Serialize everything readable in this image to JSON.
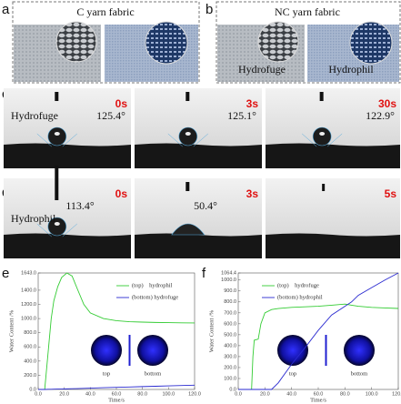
{
  "panels": {
    "a": {
      "label": "a",
      "title": "C yarn fabric"
    },
    "b": {
      "label": "b",
      "title": "NC yarn fabric",
      "captions": [
        "Hydrofuge",
        "Hydrophil"
      ]
    },
    "c": {
      "label": "c",
      "sample": "Hydrofuge",
      "times": [
        "0s",
        "3s",
        "30s"
      ],
      "angles": [
        "125.4°",
        "125.1°",
        "122.9°"
      ]
    },
    "d": {
      "label": "d",
      "sample": "Hydrophil",
      "times": [
        "0s",
        "3s",
        "5s"
      ],
      "angles": [
        "113.4°",
        "50.4°"
      ]
    }
  },
  "chart_data": [
    {
      "panel_label": "e",
      "type": "line",
      "xlabel": "Time/s",
      "ylabel": "Water Content /%",
      "inset_labels": [
        "top",
        "bottom"
      ],
      "x": [
        0,
        5,
        8,
        10,
        12,
        15,
        18,
        22,
        26,
        30,
        35,
        40,
        50,
        60,
        70,
        80,
        90,
        100,
        110,
        120
      ],
      "series": [
        {
          "name": "(top)    hydrophil",
          "color": "#33cc33",
          "values": [
            0,
            0,
            600,
            1000,
            1250,
            1450,
            1580,
            1643,
            1600,
            1420,
            1200,
            1080,
            1000,
            970,
            955,
            950,
            945,
            942,
            940,
            938
          ]
        },
        {
          "name": "(bottom) hydrofuge",
          "color": "#2a2ad0",
          "values": [
            0,
            0,
            2,
            3,
            4,
            5,
            6,
            8,
            10,
            12,
            15,
            18,
            25,
            30,
            35,
            40,
            45,
            50,
            55,
            60
          ]
        }
      ],
      "xlim": [
        0,
        120
      ],
      "ylim": [
        0,
        1643
      ],
      "xticks": [
        {
          "value": 0,
          "label": "0.0"
        },
        {
          "value": 20,
          "label": "20.0"
        },
        {
          "value": 40,
          "label": "40.0"
        },
        {
          "value": 60,
          "label": "60.0"
        },
        {
          "value": 80,
          "label": "80.0"
        },
        {
          "value": 100,
          "label": "100.0"
        },
        {
          "value": 120,
          "label": "120.0"
        }
      ],
      "yticks": [
        {
          "value": 0,
          "label": "0.0"
        },
        {
          "value": 200,
          "label": "200.0"
        },
        {
          "value": 400,
          "label": "400.0"
        },
        {
          "value": 600,
          "label": "600.0"
        },
        {
          "value": 800,
          "label": "800.0"
        },
        {
          "value": 1000,
          "label": "1000.0"
        },
        {
          "value": 1200,
          "label": "1200.0"
        },
        {
          "value": 1400,
          "label": "1400.0"
        },
        {
          "value": 1643,
          "label": "1643.0"
        }
      ]
    },
    {
      "panel_label": "f",
      "type": "line",
      "xlabel": "Time/s",
      "ylabel": "Water Content /%",
      "inset_labels": [
        "top",
        "bottom"
      ],
      "x": [
        0,
        10,
        11,
        12,
        15,
        17,
        20,
        25,
        30,
        40,
        50,
        60,
        70,
        80,
        85,
        90,
        100,
        110,
        120
      ],
      "series": [
        {
          "name": "(top)    hydrofuge",
          "color": "#33cc33",
          "values": [
            0,
            0,
            300,
            450,
            460,
            600,
            700,
            730,
            740,
            750,
            755,
            760,
            770,
            780,
            770,
            760,
            750,
            745,
            740
          ]
        },
        {
          "name": "(bottom) hydrophil",
          "color": "#2a2ad0",
          "values": [
            0,
            0,
            0,
            0,
            0,
            0,
            0,
            0,
            60,
            230,
            380,
            540,
            680,
            760,
            800,
            860,
            930,
            1000,
            1064.4
          ]
        }
      ],
      "xlim": [
        0,
        120
      ],
      "ylim": [
        0,
        1064.4
      ],
      "xticks": [
        {
          "value": 0,
          "label": "0.0"
        },
        {
          "value": 20,
          "label": "20.0"
        },
        {
          "value": 40,
          "label": "40.0"
        },
        {
          "value": 60,
          "label": "60.0"
        },
        {
          "value": 80,
          "label": "80.0"
        },
        {
          "value": 100,
          "label": "100.0"
        },
        {
          "value": 120,
          "label": "120.0"
        }
      ],
      "yticks": [
        {
          "value": 0,
          "label": "0.0"
        },
        {
          "value": 100,
          "label": "100.0"
        },
        {
          "value": 200,
          "label": "200.0"
        },
        {
          "value": 300,
          "label": "300.0"
        },
        {
          "value": 400,
          "label": "400.0"
        },
        {
          "value": 500,
          "label": "500.0"
        },
        {
          "value": 600,
          "label": "600.0"
        },
        {
          "value": 700,
          "label": "700.0"
        },
        {
          "value": 800,
          "label": "800.0"
        },
        {
          "value": 900,
          "label": "900.0"
        },
        {
          "value": 1000,
          "label": "1000.0"
        },
        {
          "value": 1064.4,
          "label": "1064.4"
        }
      ]
    }
  ]
}
